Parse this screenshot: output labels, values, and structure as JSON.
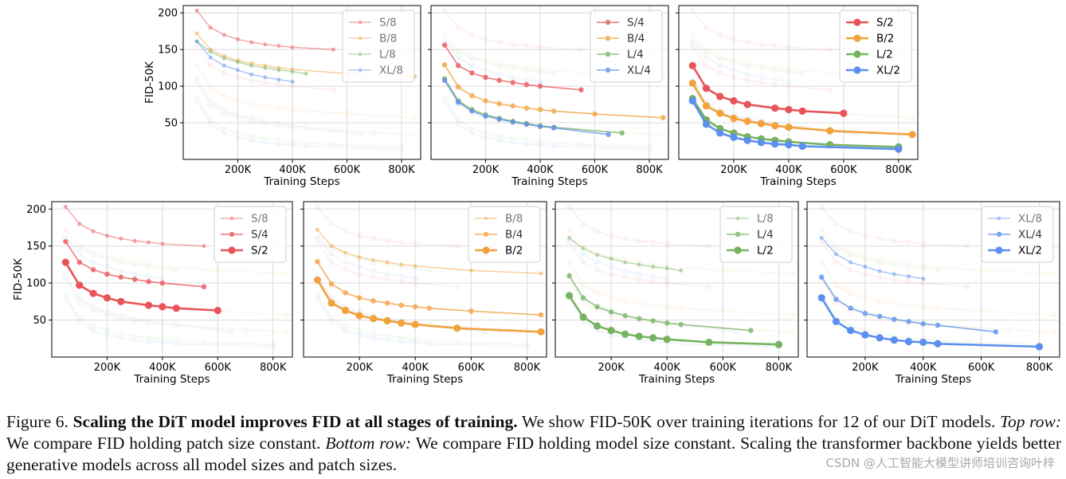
{
  "chart_data": [
    {
      "type": "line",
      "panel": "top-1",
      "ylabel": "FID-50K",
      "xlabel": "Training Steps",
      "xlim": [
        0,
        870000
      ],
      "ylim": [
        0,
        210
      ],
      "yticks": [
        50,
        100,
        150,
        200
      ],
      "xticks": [
        200000,
        400000,
        600000,
        800000
      ],
      "legend": "top-right",
      "series": [
        {
          "name": "S/8",
          "color": "#e8545a",
          "weight": "light",
          "x": [
            50000,
            100000,
            150000,
            200000,
            250000,
            300000,
            350000,
            400000,
            550000
          ],
          "y": [
            203,
            180,
            170,
            164,
            160,
            157,
            155,
            153,
            150
          ]
        },
        {
          "name": "B/8",
          "color": "#f2a23c",
          "weight": "light",
          "x": [
            50000,
            100000,
            150000,
            200000,
            250000,
            300000,
            350000,
            400000,
            600000,
            850000
          ],
          "y": [
            172,
            150,
            141,
            135,
            131,
            128,
            125,
            123,
            117,
            113
          ]
        },
        {
          "name": "L/8",
          "color": "#76b35e",
          "weight": "light",
          "x": [
            50000,
            100000,
            150000,
            200000,
            250000,
            300000,
            350000,
            400000,
            450000
          ],
          "y": [
            161,
            147,
            138,
            133,
            128,
            125,
            122,
            120,
            117
          ]
        },
        {
          "name": "XL/8",
          "color": "#5b8ff0",
          "weight": "light",
          "x": [
            50000,
            100000,
            150000,
            200000,
            250000,
            300000,
            350000,
            400000
          ],
          "y": [
            161,
            139,
            128,
            122,
            116,
            112,
            109,
            106
          ]
        }
      ]
    },
    {
      "type": "line",
      "panel": "top-2",
      "ylabel": "",
      "xlabel": "Training Steps",
      "xlim": [
        0,
        870000
      ],
      "ylim": [
        0,
        210
      ],
      "yticks": [
        50,
        100,
        150,
        200
      ],
      "xticks": [
        200000,
        400000,
        600000,
        800000
      ],
      "legend": "top-right",
      "series": [
        {
          "name": "S/4",
          "color": "#e8545a",
          "weight": "medium",
          "x": [
            50000,
            100000,
            150000,
            200000,
            250000,
            300000,
            350000,
            400000,
            550000
          ],
          "y": [
            156,
            128,
            118,
            112,
            108,
            105,
            102,
            100,
            95
          ]
        },
        {
          "name": "B/4",
          "color": "#f2a23c",
          "weight": "medium",
          "x": [
            50000,
            100000,
            150000,
            200000,
            250000,
            300000,
            350000,
            400000,
            450000,
            600000,
            850000
          ],
          "y": [
            129,
            99,
            87,
            80,
            76,
            73,
            70,
            68,
            66,
            62,
            57
          ]
        },
        {
          "name": "L/4",
          "color": "#76b35e",
          "weight": "medium",
          "x": [
            50000,
            100000,
            150000,
            200000,
            250000,
            300000,
            350000,
            400000,
            450000,
            700000
          ],
          "y": [
            110,
            80,
            68,
            61,
            56,
            52,
            49,
            46,
            44,
            36
          ]
        },
        {
          "name": "XL/4",
          "color": "#5b8ff0",
          "weight": "medium",
          "x": [
            50000,
            100000,
            150000,
            200000,
            250000,
            300000,
            350000,
            400000,
            450000,
            650000
          ],
          "y": [
            108,
            78,
            66,
            59,
            55,
            51,
            48,
            45,
            43,
            34
          ]
        }
      ]
    },
    {
      "type": "line",
      "panel": "top-3",
      "ylabel": "",
      "xlabel": "Training Steps",
      "xlim": [
        0,
        870000
      ],
      "ylim": [
        0,
        210
      ],
      "yticks": [
        50,
        100,
        150,
        200
      ],
      "xticks": [
        200000,
        400000,
        600000,
        800000
      ],
      "legend": "top-right",
      "series": [
        {
          "name": "S/2",
          "color": "#e8545a",
          "weight": "heavy",
          "x": [
            50000,
            100000,
            150000,
            200000,
            250000,
            350000,
            400000,
            450000,
            600000
          ],
          "y": [
            128,
            97,
            86,
            80,
            75,
            70,
            68,
            66,
            63
          ]
        },
        {
          "name": "B/2",
          "color": "#f2a23c",
          "weight": "heavy",
          "x": [
            50000,
            100000,
            150000,
            200000,
            250000,
            300000,
            350000,
            400000,
            550000,
            850000
          ],
          "y": [
            104,
            73,
            63,
            56,
            52,
            49,
            46,
            44,
            39,
            34
          ]
        },
        {
          "name": "L/2",
          "color": "#76b35e",
          "weight": "heavy",
          "x": [
            50000,
            100000,
            150000,
            200000,
            250000,
            300000,
            350000,
            400000,
            550000,
            800000
          ],
          "y": [
            83,
            54,
            42,
            36,
            31,
            28,
            26,
            24,
            20,
            17
          ]
        },
        {
          "name": "XL/2",
          "color": "#5b8ff0",
          "weight": "heavy",
          "x": [
            50000,
            100000,
            150000,
            200000,
            250000,
            300000,
            350000,
            400000,
            450000,
            800000
          ],
          "y": [
            80,
            48,
            36,
            30,
            26,
            23,
            21,
            20,
            18,
            14
          ]
        }
      ]
    },
    {
      "type": "line",
      "panel": "bottom-1",
      "ylabel": "FID-50K",
      "xlabel": "Training Steps",
      "xlim": [
        0,
        870000
      ],
      "ylim": [
        0,
        210
      ],
      "yticks": [
        50,
        100,
        150,
        200
      ],
      "xticks": [
        200000,
        400000,
        600000,
        800000
      ],
      "legend": "top-right",
      "series": [
        {
          "name": "S/8",
          "color": "#e8545a",
          "weight": "light",
          "x": [
            50000,
            100000,
            150000,
            200000,
            250000,
            300000,
            350000,
            400000,
            550000
          ],
          "y": [
            203,
            180,
            170,
            164,
            160,
            157,
            155,
            153,
            150
          ]
        },
        {
          "name": "S/4",
          "color": "#e8545a",
          "weight": "medium",
          "x": [
            50000,
            100000,
            150000,
            200000,
            250000,
            300000,
            350000,
            400000,
            550000
          ],
          "y": [
            156,
            128,
            118,
            112,
            108,
            105,
            102,
            100,
            95
          ]
        },
        {
          "name": "S/2",
          "color": "#e8545a",
          "weight": "heavy",
          "x": [
            50000,
            100000,
            150000,
            200000,
            250000,
            350000,
            400000,
            450000,
            600000
          ],
          "y": [
            128,
            97,
            86,
            80,
            75,
            70,
            68,
            66,
            63
          ]
        }
      ]
    },
    {
      "type": "line",
      "panel": "bottom-2",
      "ylabel": "",
      "xlabel": "Training Steps",
      "xlim": [
        0,
        870000
      ],
      "ylim": [
        0,
        210
      ],
      "yticks": [
        50,
        100,
        150,
        200
      ],
      "xticks": [
        200000,
        400000,
        600000,
        800000
      ],
      "legend": "top-right",
      "series": [
        {
          "name": "B/8",
          "color": "#f2a23c",
          "weight": "light",
          "x": [
            50000,
            100000,
            150000,
            200000,
            250000,
            300000,
            350000,
            400000,
            600000,
            850000
          ],
          "y": [
            172,
            150,
            141,
            135,
            131,
            128,
            125,
            123,
            117,
            113
          ]
        },
        {
          "name": "B/4",
          "color": "#f2a23c",
          "weight": "medium",
          "x": [
            50000,
            100000,
            150000,
            200000,
            250000,
            300000,
            350000,
            400000,
            450000,
            600000,
            850000
          ],
          "y": [
            129,
            99,
            87,
            80,
            76,
            73,
            70,
            68,
            66,
            62,
            57
          ]
        },
        {
          "name": "B/2",
          "color": "#f2a23c",
          "weight": "heavy",
          "x": [
            50000,
            100000,
            150000,
            200000,
            250000,
            300000,
            350000,
            400000,
            550000,
            850000
          ],
          "y": [
            104,
            73,
            63,
            56,
            52,
            49,
            46,
            44,
            39,
            34
          ]
        }
      ]
    },
    {
      "type": "line",
      "panel": "bottom-3",
      "ylabel": "",
      "xlabel": "Training Steps",
      "xlim": [
        0,
        870000
      ],
      "ylim": [
        0,
        210
      ],
      "yticks": [
        50,
        100,
        150,
        200
      ],
      "xticks": [
        200000,
        400000,
        600000,
        800000
      ],
      "legend": "top-right",
      "series": [
        {
          "name": "L/8",
          "color": "#76b35e",
          "weight": "light",
          "x": [
            50000,
            100000,
            150000,
            200000,
            250000,
            300000,
            350000,
            400000,
            450000
          ],
          "y": [
            161,
            147,
            138,
            133,
            128,
            125,
            122,
            120,
            117
          ]
        },
        {
          "name": "L/4",
          "color": "#76b35e",
          "weight": "medium",
          "x": [
            50000,
            100000,
            150000,
            200000,
            250000,
            300000,
            350000,
            400000,
            450000,
            700000
          ],
          "y": [
            110,
            80,
            68,
            61,
            56,
            52,
            49,
            46,
            44,
            36
          ]
        },
        {
          "name": "L/2",
          "color": "#76b35e",
          "weight": "heavy",
          "x": [
            50000,
            100000,
            150000,
            200000,
            250000,
            300000,
            350000,
            400000,
            550000,
            800000
          ],
          "y": [
            83,
            54,
            42,
            36,
            31,
            28,
            26,
            24,
            20,
            17
          ]
        }
      ]
    },
    {
      "type": "line",
      "panel": "bottom-4",
      "ylabel": "",
      "xlabel": "Training Steps",
      "xlim": [
        0,
        870000
      ],
      "ylim": [
        0,
        210
      ],
      "yticks": [
        50,
        100,
        150,
        200
      ],
      "xticks": [
        200000,
        400000,
        600000,
        800000
      ],
      "legend": "top-right",
      "series": [
        {
          "name": "XL/8",
          "color": "#5b8ff0",
          "weight": "light",
          "x": [
            50000,
            100000,
            150000,
            200000,
            250000,
            300000,
            350000,
            400000
          ],
          "y": [
            161,
            139,
            128,
            122,
            116,
            112,
            109,
            106
          ]
        },
        {
          "name": "XL/4",
          "color": "#5b8ff0",
          "weight": "medium",
          "x": [
            50000,
            100000,
            150000,
            200000,
            250000,
            300000,
            350000,
            400000,
            450000,
            650000
          ],
          "y": [
            108,
            78,
            66,
            59,
            55,
            51,
            48,
            45,
            43,
            34
          ]
        },
        {
          "name": "XL/2",
          "color": "#5b8ff0",
          "weight": "heavy",
          "x": [
            50000,
            100000,
            150000,
            200000,
            250000,
            300000,
            350000,
            400000,
            450000,
            800000
          ],
          "y": [
            80,
            48,
            36,
            30,
            26,
            23,
            21,
            20,
            18,
            14
          ]
        }
      ]
    }
  ],
  "caption": {
    "label": "Figure 6.",
    "title": "Scaling the DiT model improves FID at all stages of training.",
    "text1": "We show FID-50K over training iterations for 12 of our DiT models.",
    "top_label": "Top row:",
    "text2": "We compare FID holding patch size constant.",
    "bottom_label": "Bottom row:",
    "text3": "We compare FID holding model size constant. Scaling the transformer backbone yields better generative models across all model sizes and patch sizes."
  },
  "watermark": "CSDN @人工智能大模型讲师培训咨询叶梓"
}
